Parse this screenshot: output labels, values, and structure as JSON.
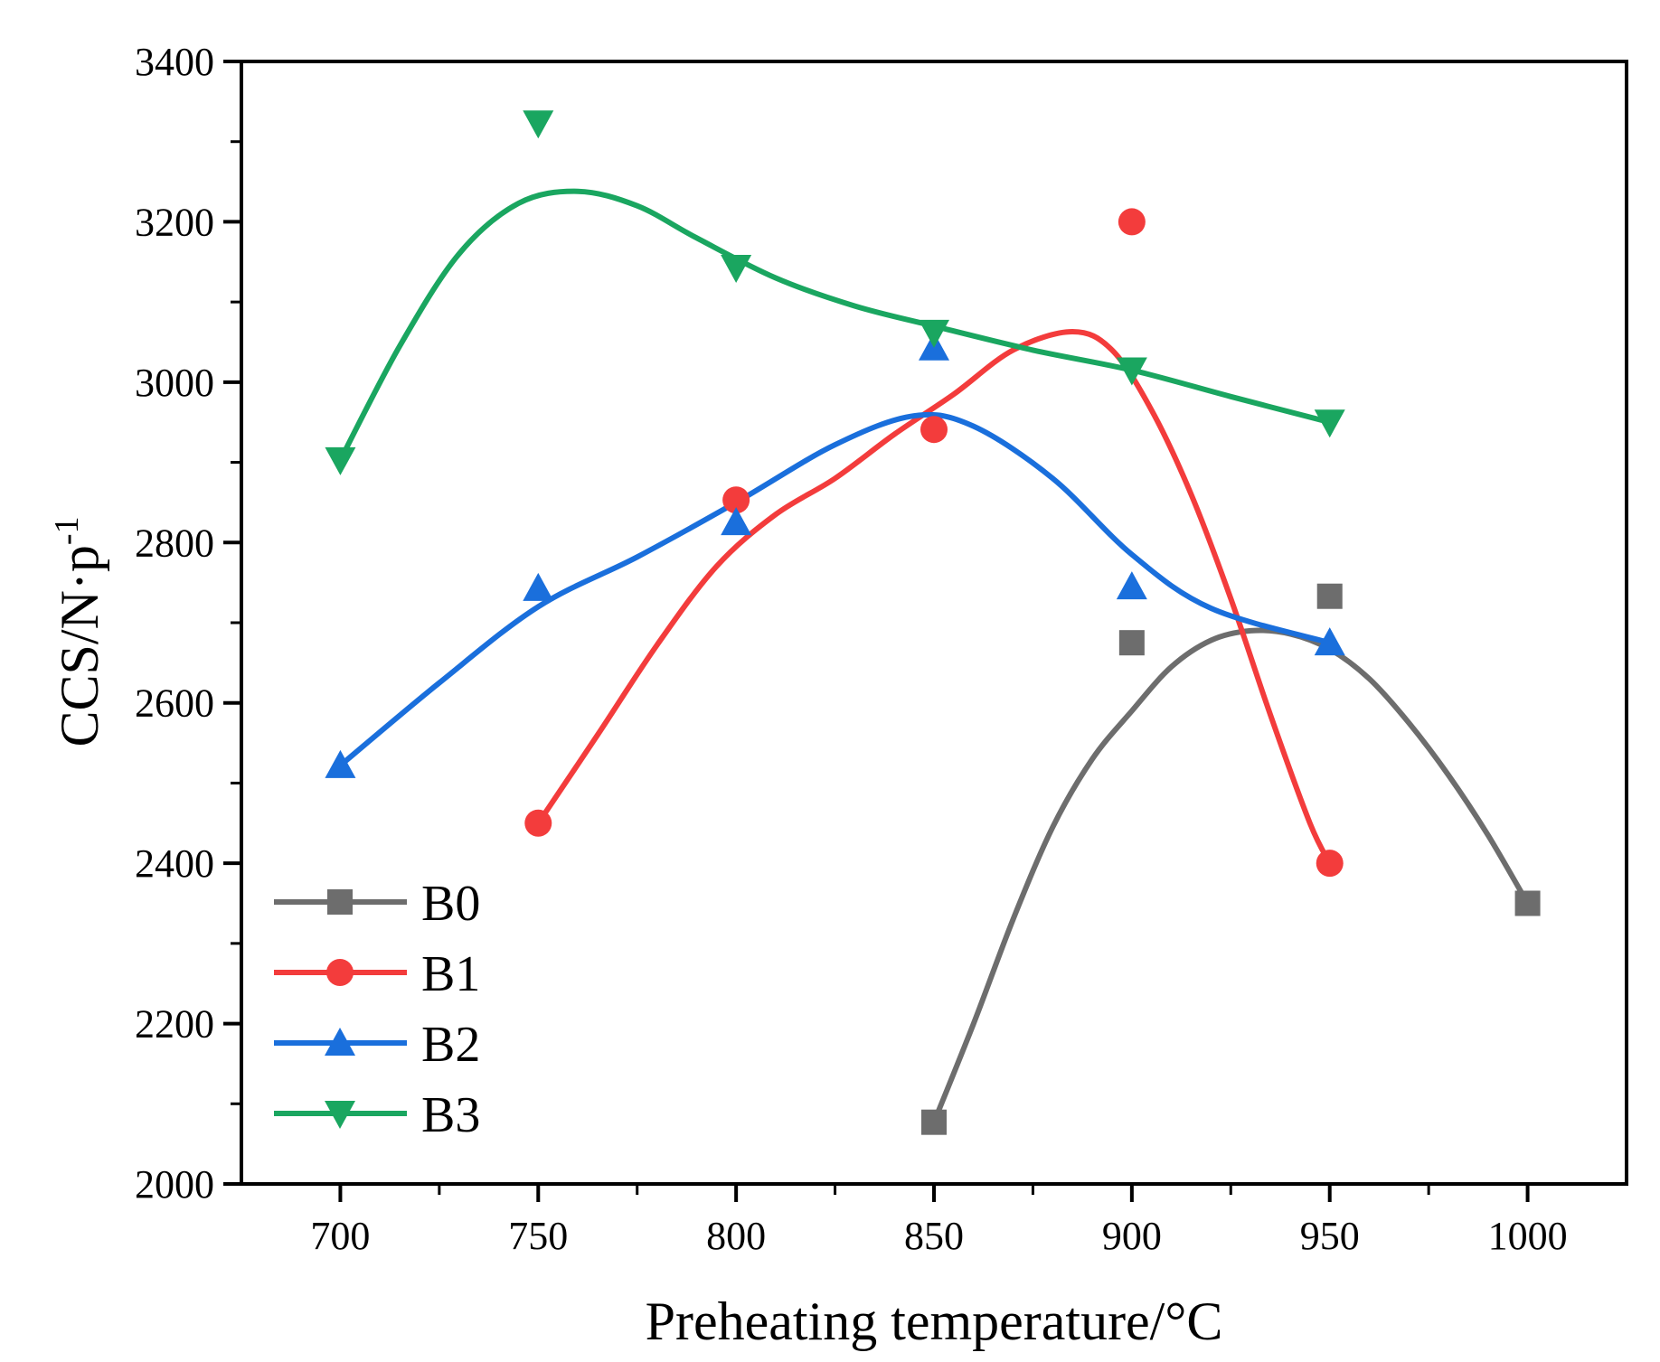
{
  "chart_data": {
    "type": "line",
    "xlabel": "Preheating temperature/°C",
    "ylabel": {
      "main": "CCS/N·p",
      "sup": "-1"
    },
    "xlim": [
      675,
      1025
    ],
    "ylim": [
      2000,
      3400
    ],
    "x_ticks": [
      700,
      750,
      800,
      850,
      900,
      950,
      1000
    ],
    "x_tick_labels": [
      "700",
      "750",
      "800",
      "850",
      "900",
      "950",
      "1000"
    ],
    "x_minor_ticks": [
      725,
      775,
      825,
      875,
      925,
      975
    ],
    "y_ticks": [
      2000,
      2200,
      2400,
      2600,
      2800,
      3000,
      3200,
      3400
    ],
    "y_tick_labels": [
      "2000",
      "2200",
      "2400",
      "2600",
      "2800",
      "3000",
      "3200",
      "3400"
    ],
    "y_minor_ticks": [
      2100,
      2300,
      2500,
      2700,
      2900,
      3100,
      3300
    ],
    "grid": false,
    "legend_position": "bottom-left",
    "series": [
      {
        "name": "B0",
        "color": "#6d6d6d",
        "marker": "square",
        "x": [
          850,
          900,
          950,
          1000
        ],
        "y": [
          2077,
          2675,
          2733,
          2350
        ],
        "curve_x": [
          850,
          860,
          870,
          880,
          890,
          900,
          910,
          920,
          930,
          940,
          950,
          960,
          970,
          980,
          990,
          1000
        ],
        "curve_y": [
          2077,
          2200,
          2330,
          2445,
          2530,
          2590,
          2645,
          2678,
          2690,
          2686,
          2667,
          2630,
          2575,
          2510,
          2435,
          2350
        ]
      },
      {
        "name": "B1",
        "color": "#f33c3c",
        "marker": "circle",
        "x": [
          750,
          800,
          850,
          900,
          950
        ],
        "y": [
          2450,
          2853,
          2941,
          3200,
          2400
        ],
        "curve_x": [
          750,
          765,
          780,
          795,
          810,
          825,
          840,
          855,
          870,
          885,
          895,
          905,
          915,
          925,
          935,
          945,
          950
        ],
        "curve_y": [
          2450,
          2560,
          2672,
          2770,
          2835,
          2880,
          2935,
          2985,
          3040,
          3063,
          3040,
          2965,
          2860,
          2730,
          2585,
          2450,
          2400
        ]
      },
      {
        "name": "B2",
        "color": "#1a6fdc",
        "marker": "triangle-up",
        "x": [
          700,
          750,
          800,
          850,
          900,
          950
        ],
        "y": [
          2522,
          2743,
          2825,
          3043,
          2745,
          2675
        ],
        "curve_x": [
          700,
          725,
          750,
          775,
          800,
          825,
          845,
          860,
          880,
          900,
          920,
          950
        ],
        "curve_y": [
          2522,
          2625,
          2720,
          2782,
          2850,
          2922,
          2958,
          2945,
          2880,
          2785,
          2718,
          2675
        ]
      },
      {
        "name": "B3",
        "color": "#1aa660",
        "marker": "triangle-down",
        "x": [
          700,
          750,
          800,
          850,
          900,
          950
        ],
        "y": [
          2903,
          3323,
          3143,
          3062,
          3015,
          2950
        ],
        "curve_x": [
          700,
          715,
          730,
          745,
          760,
          775,
          790,
          810,
          830,
          850,
          875,
          900,
          925,
          950
        ],
        "curve_y": [
          2903,
          3045,
          3160,
          3223,
          3238,
          3220,
          3180,
          3130,
          3095,
          3070,
          3040,
          3015,
          2982,
          2950
        ]
      }
    ]
  }
}
